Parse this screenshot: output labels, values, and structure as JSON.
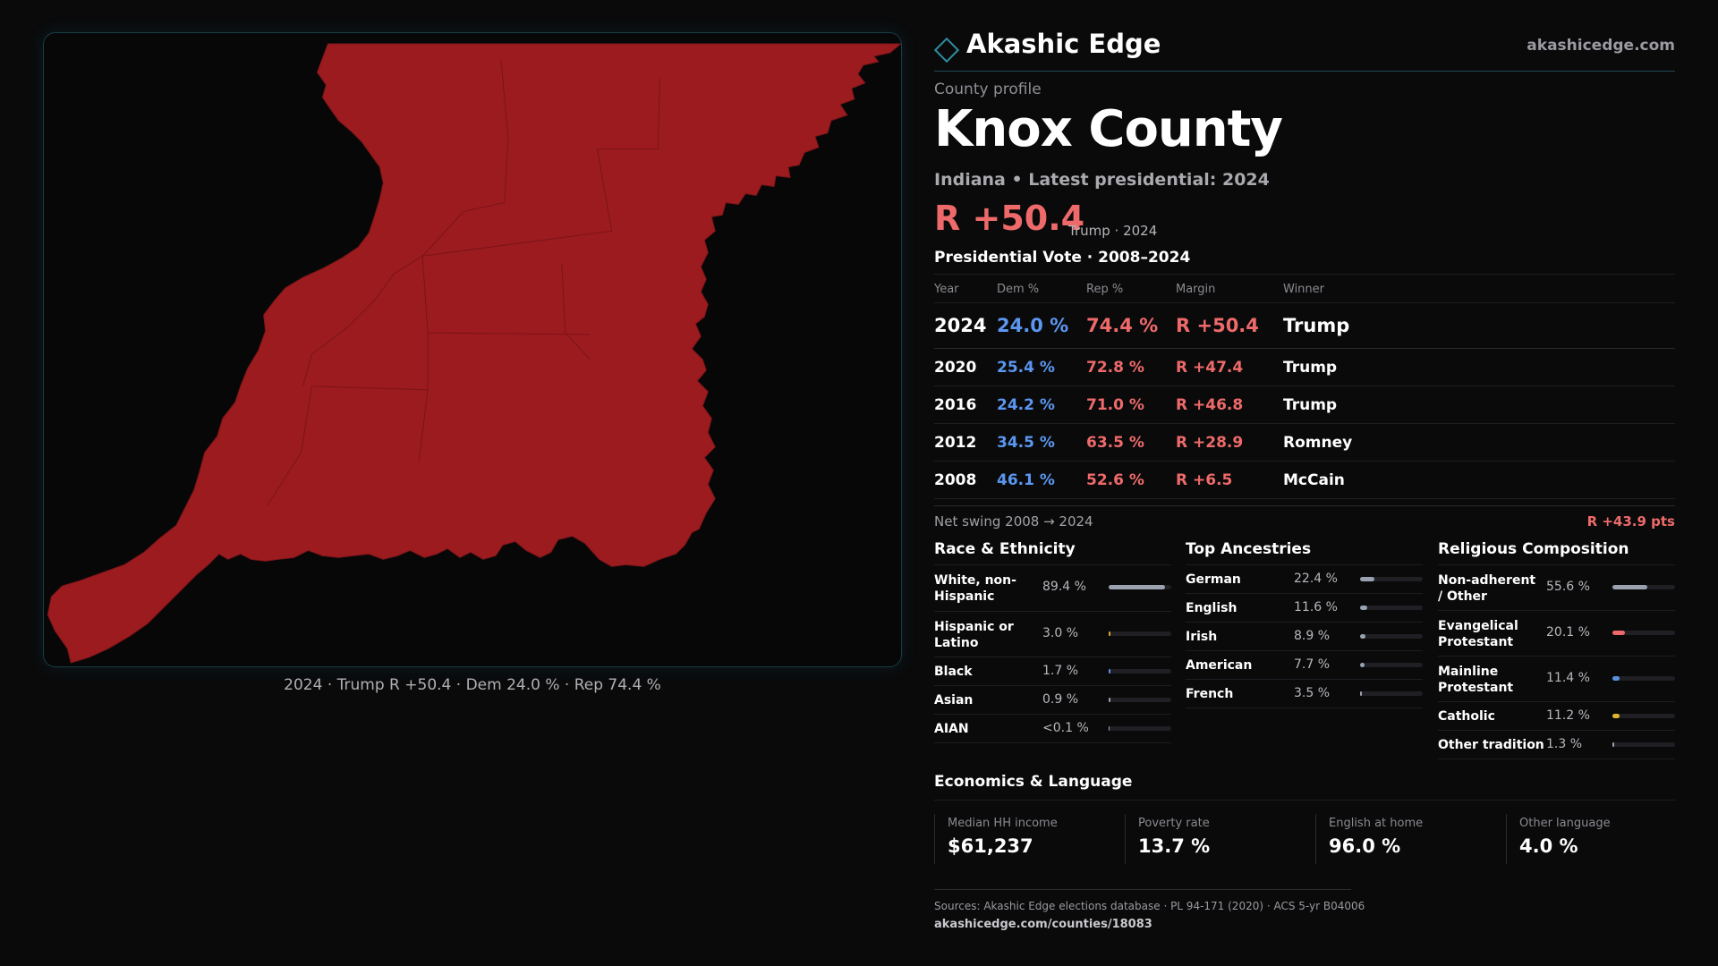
{
  "brand": {
    "name": "Akashic Edge",
    "url": "akashicedge.com",
    "accent": "#2e8fa0"
  },
  "profile": {
    "eyebrow": "County profile",
    "county": "Knox County",
    "subtitle": "Indiana • Latest presidential: 2024",
    "margin": "R +50.4",
    "margin_note": "Trump · 2024"
  },
  "map": {
    "caption": "2024 · Trump R +50.4 · Dem 24.0 % · Rep 74.4 %",
    "fill_color": "#9c1b1f"
  },
  "presidential": {
    "title": "Presidential Vote · 2008–2024",
    "headers": [
      "Year",
      "Dem %",
      "Rep %",
      "Margin",
      "Winner"
    ],
    "rows": [
      {
        "year": "2024",
        "dem": "24.0 %",
        "rep": "74.4 %",
        "margin": "R +50.4",
        "winner": "Trump"
      },
      {
        "year": "2020",
        "dem": "25.4 %",
        "rep": "72.8 %",
        "margin": "R +47.4",
        "winner": "Trump"
      },
      {
        "year": "2016",
        "dem": "24.2 %",
        "rep": "71.0 %",
        "margin": "R +46.8",
        "winner": "Trump"
      },
      {
        "year": "2012",
        "dem": "34.5 %",
        "rep": "63.5 %",
        "margin": "R +28.9",
        "winner": "Romney"
      },
      {
        "year": "2008",
        "dem": "46.1 %",
        "rep": "52.6 %",
        "margin": "R +6.5",
        "winner": "McCain"
      }
    ],
    "swing_label": "Net swing 2008 → 2024",
    "swing_value": "R +43.9 pts"
  },
  "race": {
    "title": "Race & Ethnicity",
    "items": [
      {
        "label": "White, non-Hispanic",
        "value": "89.4 %",
        "share": 0.894,
        "color": "#9aa2b0"
      },
      {
        "label": "Hispanic or Latino",
        "value": "3.0 %",
        "share": 0.03,
        "color": "#e0a530"
      },
      {
        "label": "Black",
        "value": "1.7 %",
        "share": 0.017,
        "color": "#5b8fe0"
      },
      {
        "label": "Asian",
        "value": "0.9 %",
        "share": 0.009,
        "color": "#9aa2b0"
      },
      {
        "label": "AIAN",
        "value": "<0.1 %",
        "share": 0.0,
        "color": "#9aa2b0"
      }
    ]
  },
  "ancestry": {
    "title": "Top Ancestries",
    "items": [
      {
        "label": "German",
        "value": "22.4 %",
        "share": 0.224,
        "color": "#9aa2b0"
      },
      {
        "label": "English",
        "value": "11.6 %",
        "share": 0.116,
        "color": "#9aa2b0"
      },
      {
        "label": "Irish",
        "value": "8.9 %",
        "share": 0.089,
        "color": "#9aa2b0"
      },
      {
        "label": "American",
        "value": "7.7 %",
        "share": 0.077,
        "color": "#9aa2b0"
      },
      {
        "label": "French",
        "value": "3.5 %",
        "share": 0.035,
        "color": "#9aa2b0"
      }
    ]
  },
  "religion": {
    "title": "Religious Composition",
    "items": [
      {
        "label": "Non-adherent / Other",
        "value": "55.6 %",
        "share": 0.556,
        "color": "#9aa2b0"
      },
      {
        "label": "Evangelical Protestant",
        "value": "20.1 %",
        "share": 0.201,
        "color": "#ee6a6a"
      },
      {
        "label": "Mainline Protestant",
        "value": "11.4 %",
        "share": 0.114,
        "color": "#5b8fe0"
      },
      {
        "label": "Catholic",
        "value": "11.2 %",
        "share": 0.112,
        "color": "#e0b530"
      },
      {
        "label": "Other tradition",
        "value": "1.3 %",
        "share": 0.013,
        "color": "#9aa2b0"
      }
    ]
  },
  "economics": {
    "title": "Economics & Language",
    "cards": [
      {
        "label": "Median HH income",
        "value": "$61,237"
      },
      {
        "label": "Poverty rate",
        "value": "13.7 %"
      },
      {
        "label": "English at home",
        "value": "96.0 %"
      },
      {
        "label": "Other language",
        "value": "4.0 %"
      }
    ]
  },
  "footer": {
    "sources": "Sources: Akashic Edge elections database · PL 94-171 (2020) · ACS 5-yr B04006",
    "url": "akashicedge.com/counties/18083"
  }
}
